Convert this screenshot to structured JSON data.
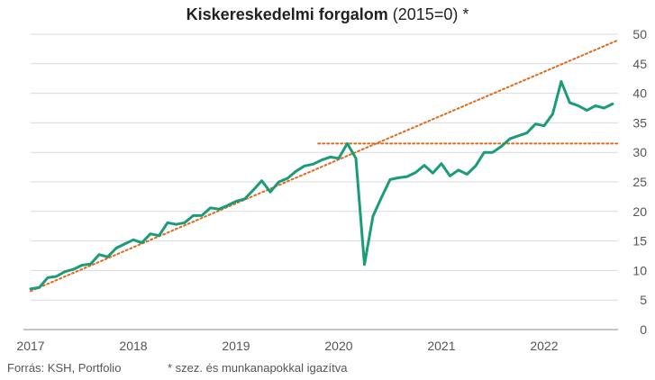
{
  "chart_data": {
    "type": "line",
    "title_bold": "Kiskereskedelmi forgalom",
    "title_rest": "(2015=0) *",
    "source": "Forrás: KSH, Portfolio",
    "note": "* szez. és munkanapokkal igazítva",
    "xlim": [
      2017.0,
      2022.72
    ],
    "ylim": [
      0,
      50
    ],
    "x_ticks": [
      "2017",
      "2018",
      "2019",
      "2020",
      "2021",
      "2022"
    ],
    "y_ticks": [
      "0",
      "5",
      "10",
      "15",
      "20",
      "25",
      "30",
      "35",
      "40",
      "45",
      "50"
    ],
    "grid": true,
    "colors": {
      "series": "#1a9b7a",
      "trend": "#e06a1c",
      "grid": "#d9d9d9",
      "axis": "#888888"
    },
    "series": [
      {
        "x_start": 2017.0,
        "step_months": 1,
        "values": [
          6.9,
          7.1,
          8.8,
          9.0,
          9.8,
          10.2,
          10.9,
          11.1,
          12.7,
          12.3,
          13.8,
          14.5,
          15.2,
          14.7,
          16.2,
          15.9,
          18.1,
          17.8,
          18.1,
          19.3,
          19.3,
          20.6,
          20.4,
          21.0,
          21.7,
          22.1,
          23.6,
          25.2,
          23.3,
          25.0,
          25.6,
          26.8,
          27.7,
          28.0,
          28.7,
          29.2,
          29.0,
          31.5,
          29.0,
          11.0,
          19.2,
          22.4,
          25.4,
          25.7,
          25.9,
          26.6,
          27.8,
          26.5,
          28.1,
          26.0,
          27.0,
          26.3,
          27.7,
          30.0,
          30.0,
          31.0,
          32.3,
          32.8,
          33.3,
          34.8,
          34.5,
          36.5,
          42.0,
          38.4,
          37.9,
          37.1,
          37.9,
          37.5,
          38.2
        ]
      }
    ],
    "trend_line": {
      "x": [
        2017.0,
        2022.72
      ],
      "y": [
        6.5,
        49.0
      ]
    },
    "level_line": {
      "x": [
        2019.8,
        2022.72
      ],
      "y": [
        31.5,
        31.5
      ]
    }
  }
}
